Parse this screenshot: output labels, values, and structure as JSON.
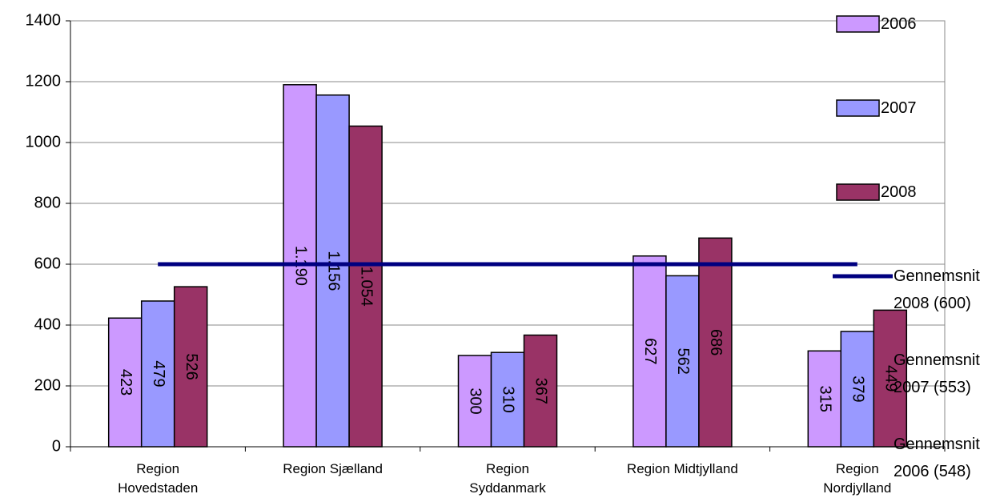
{
  "chart_data": {
    "type": "bar",
    "categories": [
      "Region\nHovedstaden",
      "Region Sjælland",
      "Region\nSyddanmark",
      "Region Midtjylland",
      "Region\nNordjylland"
    ],
    "series": [
      {
        "name": "2006",
        "color": "#cc99ff",
        "values": [
          423,
          1190,
          300,
          627,
          315
        ],
        "value_labels": [
          "423",
          "1.190",
          "300",
          "627",
          "315"
        ]
      },
      {
        "name": "2007",
        "color": "#9999ff",
        "values": [
          479,
          1156,
          310,
          562,
          379
        ],
        "value_labels": [
          "479",
          "1.156",
          "310",
          "562",
          "379"
        ]
      },
      {
        "name": "2008",
        "color": "#993366",
        "values": [
          526,
          1054,
          367,
          686,
          449
        ],
        "value_labels": [
          "526",
          "1.054",
          "367",
          "686",
          "449"
        ]
      },
      {
        "name": "Gennemsnit\n2008 (600)",
        "type": "line",
        "color": "#000080",
        "values": [
          600,
          600,
          600,
          600,
          600
        ]
      },
      {
        "name": "Gennemsnit\n2007 (553)",
        "type": "line",
        "color": "none",
        "values": [
          553,
          553,
          553,
          553,
          553
        ]
      },
      {
        "name": "Gennemsnit\n2006 (548)",
        "type": "line",
        "color": "none",
        "values": [
          548,
          548,
          548,
          548,
          548
        ]
      }
    ],
    "ylim": [
      0,
      1400
    ],
    "yticks": [
      0,
      200,
      400,
      600,
      800,
      1000,
      1200,
      1400
    ],
    "grid": true,
    "legend": "right"
  }
}
